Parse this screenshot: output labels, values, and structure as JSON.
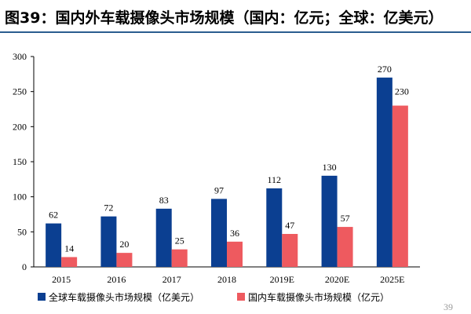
{
  "figure": {
    "title": "图39：国内外车载摄像头市场规模（国内：亿元；全球：亿美元）",
    "page_number": "39"
  },
  "colors": {
    "global": "#0b3f91",
    "domestic": "#ee5a5f",
    "rule": "#2a5d8f"
  },
  "chart_data": {
    "type": "bar",
    "title": "",
    "xlabel": "",
    "ylabel": "",
    "categories": [
      "2015",
      "2016",
      "2017",
      "2018",
      "2019E",
      "2020E",
      "2025E"
    ],
    "series": [
      {
        "name": "全球车载摄像头市场规模（亿美元）",
        "values": [
          62,
          72,
          83,
          97,
          112,
          130,
          270
        ]
      },
      {
        "name": "国内车载摄像头市场规模（亿元）",
        "values": [
          14,
          20,
          25,
          36,
          47,
          57,
          230
        ]
      }
    ],
    "ylim": [
      0,
      300
    ],
    "yticks": [
      0,
      50,
      100,
      150,
      200,
      250,
      300
    ],
    "grid": false,
    "legend_position": "bottom"
  }
}
